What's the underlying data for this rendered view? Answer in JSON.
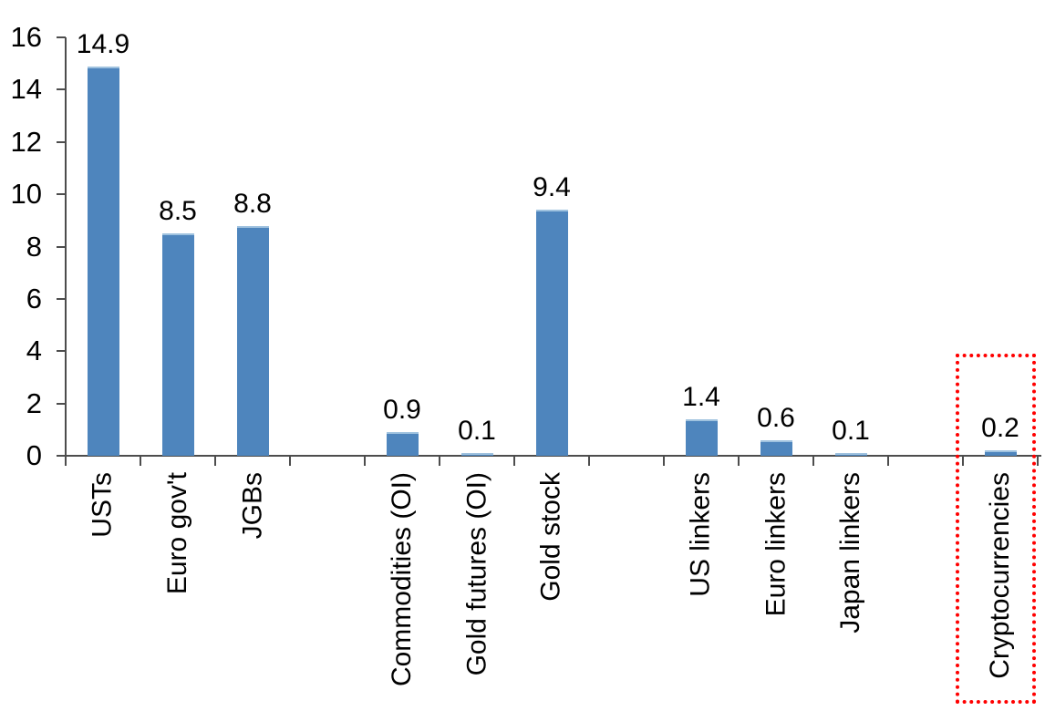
{
  "chart_data": {
    "type": "bar",
    "title": "",
    "xlabel": "",
    "ylabel": "",
    "ylim": [
      0,
      16
    ],
    "yticks": [
      0,
      2,
      4,
      6,
      8,
      10,
      12,
      14,
      16
    ],
    "grid": false,
    "legend_position": "none",
    "bar_color": "#4e85bd",
    "bar_top_highlight_color": "#9fc2df",
    "axis_color": "#4d4d4d",
    "text_color": "#000000",
    "categories": [
      "USTs",
      "Euro gov't",
      "JGBs",
      "Commodities (OI)",
      "Gold futures (OI)",
      "Gold stock",
      "US linkers",
      "Euro linkers",
      "Japan linkers",
      "Cryptocurrencies"
    ],
    "values": [
      14.9,
      8.5,
      8.8,
      0.9,
      0.1,
      9.4,
      1.4,
      0.6,
      0.1,
      0.2
    ],
    "value_labels": [
      "14.9",
      "8.5",
      "8.8",
      "0.9",
      "0.1",
      "9.4",
      "1.4",
      "0.6",
      "0.1",
      "0.2"
    ],
    "total_slots": 13,
    "items": [
      {
        "label": "USTs",
        "value": 14.9,
        "value_label": "14.9",
        "slot": 0,
        "highlighted": false
      },
      {
        "label": "Euro gov't",
        "value": 8.5,
        "value_label": "8.5",
        "slot": 1,
        "highlighted": false
      },
      {
        "label": "JGBs",
        "value": 8.8,
        "value_label": "8.8",
        "slot": 2,
        "highlighted": false
      },
      {
        "label": "Commodities (OI)",
        "value": 0.9,
        "value_label": "0.9",
        "slot": 4,
        "highlighted": false
      },
      {
        "label": "Gold futures (OI)",
        "value": 0.1,
        "value_label": "0.1",
        "slot": 5,
        "highlighted": false
      },
      {
        "label": "Gold stock",
        "value": 9.4,
        "value_label": "9.4",
        "slot": 6,
        "highlighted": false
      },
      {
        "label": "US linkers",
        "value": 1.4,
        "value_label": "1.4",
        "slot": 8,
        "highlighted": false
      },
      {
        "label": "Euro linkers",
        "value": 0.6,
        "value_label": "0.6",
        "slot": 9,
        "highlighted": false
      },
      {
        "label": "Japan linkers",
        "value": 0.1,
        "value_label": "0.1",
        "slot": 10,
        "highlighted": false
      },
      {
        "label": "Cryptocurrencies",
        "value": 0.2,
        "value_label": "0.2",
        "slot": 12,
        "highlighted": true
      }
    ],
    "highlight_box": {
      "item": "Cryptocurrencies",
      "style": "red-dotted-rectangle",
      "color": "#ff0000"
    }
  }
}
